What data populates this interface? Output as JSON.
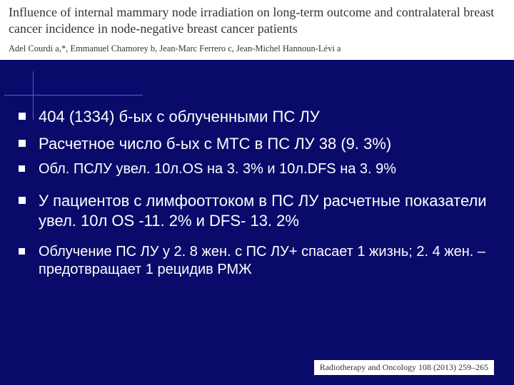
{
  "colors": {
    "slide_bg": "#0a0a6b",
    "header_bg": "#ffffff",
    "text_light": "#ffffff",
    "text_dark": "#333333",
    "rule": "#5b5bd6"
  },
  "header": {
    "title": "Influence of internal mammary node irradiation on long-term outcome and contralateral breast cancer incidence in node-negative breast cancer patients",
    "authors_html": "Adel Courdi a,*, Emmanuel Chamorey b, Jean-Marc Ferrero c, Jean-Michel Hannoun-Lévi a"
  },
  "bullets": [
    {
      "text": "404 (1334) б-ых с облученными ПС ЛУ",
      "size": "normal"
    },
    {
      "text": "Расчетное число б-ых с МТС в ПС ЛУ 38 (9. 3%)",
      "size": "normal"
    },
    {
      "text": "Обл. ПСЛУ увел. 10л.OS на 3. 3% и 10л.DFS на 3. 9%",
      "size": "small"
    },
    {
      "text": "У пациентов с лимфооттоком в ПС ЛУ расчетные показатели увел. 10л OS -11. 2% и DFS- 13. 2%",
      "size": "normal",
      "gap_before": true
    },
    {
      "text": "Облучение ПС ЛУ у 2. 8 жен. с ПС ЛУ+ спасает 1 жизнь; 2. 4 жен. – предотвращает 1 рецидив РМЖ",
      "size": "small",
      "gap_before": true
    }
  ],
  "footer": {
    "reference": "Radiotherapy and Oncology 108 (2013) 259–265"
  }
}
